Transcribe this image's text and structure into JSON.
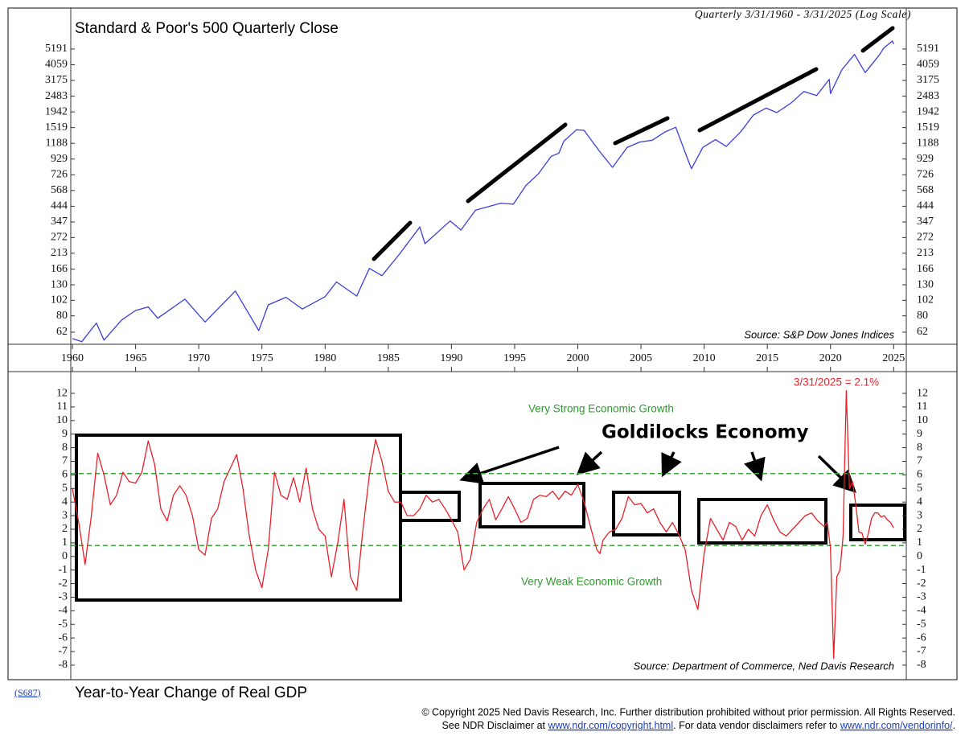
{
  "chart_data": [
    {
      "type": "line",
      "title": "Standard & Poor's 500 Quarterly Close",
      "subtitle": "Quarterly 3/31/1960 - 3/31/2025 (Log Scale)",
      "source": "Source: S&P Dow Jones Indices",
      "log_scale": true,
      "color": "#3b3fd8",
      "x": [
        1960.0,
        1960.75,
        1961.9,
        1962.5,
        1963.9,
        1965.0,
        1966.0,
        1966.75,
        1968.9,
        1970.5,
        1972.9,
        1974.75,
        1975.5,
        1976.9,
        1978.2,
        1980.0,
        1980.9,
        1982.5,
        1983.5,
        1984.5,
        1985.9,
        1987.5,
        1987.9,
        1989.9,
        1990.75,
        1991.9,
        1993.9,
        1994.9,
        1995.9,
        1996.9,
        1997.9,
        1998.5,
        1998.9,
        1999.9,
        2000.5,
        2001.75,
        2002.75,
        2003.9,
        2004.9,
        2005.9,
        2006.9,
        2007.75,
        2008.75,
        2009.0,
        2009.9,
        2010.9,
        2011.75,
        2012.9,
        2013.9,
        2014.9,
        2015.75,
        2016.9,
        2017.9,
        2018.9,
        2019.9,
        2020.0,
        2020.9,
        2021.9,
        2022.75,
        2023.9,
        2024.2,
        2024.9,
        2025.0
      ],
      "values": [
        56,
        53.5,
        71.5,
        54.8,
        75,
        87,
        92,
        77,
        103.9,
        72.7,
        118,
        63.5,
        95,
        107,
        89,
        108,
        136,
        109,
        168,
        150,
        211,
        321,
        247,
        353,
        306,
        417,
        466,
        459,
        615,
        740,
        970,
        1017,
        1229,
        1469,
        1455,
        1040,
        815,
        1112,
        1212,
        1248,
        1418,
        1527,
        903,
        798,
        1115,
        1258,
        1131,
        1426,
        1848,
        2059,
        1920,
        2239,
        2674,
        2507,
        3231,
        2585,
        3756,
        4766,
        3586,
        4770,
        5254,
        5882,
        5612
      ],
      "xlim": [
        1959.87,
        2026.0
      ],
      "xticks": [
        1960,
        1965,
        1970,
        1975,
        1980,
        1985,
        1990,
        1995,
        2000,
        2005,
        2010,
        2015,
        2020,
        2025
      ],
      "ylim": [
        51.3,
        9850
      ],
      "yticks": [
        62,
        80,
        102,
        130,
        166,
        213,
        272,
        347,
        444,
        568,
        726,
        929,
        1188,
        1519,
        1942,
        2483,
        3175,
        4059,
        5191
      ]
    },
    {
      "type": "line",
      "title": "Year-to-Year Change of Real GDP",
      "source": "Source: Department of Commerce, Ned Davis Research",
      "latest_label": "3/31/2025 = 2.1%",
      "upper_label": "Very Strong Economic Growth",
      "lower_label": "Very Weak Economic Growth",
      "callout": "Goldilocks Economy",
      "color": "#e8202a",
      "reference_lines": [
        {
          "value": 6.1,
          "color": "#3aa53a"
        },
        {
          "value": 0.8,
          "color": "#3aa53a"
        }
      ],
      "x": [
        1960.0,
        1960.5,
        1961.0,
        1961.5,
        1962.0,
        1962.5,
        1963.0,
        1963.5,
        1964.0,
        1964.5,
        1965.0,
        1965.5,
        1966.0,
        1966.5,
        1967.0,
        1967.5,
        1968.0,
        1968.5,
        1969.0,
        1969.5,
        1970.0,
        1970.5,
        1971.0,
        1971.5,
        1972.0,
        1972.5,
        1973.0,
        1973.5,
        1974.0,
        1974.5,
        1975.0,
        1975.5,
        1976.0,
        1976.5,
        1977.0,
        1977.5,
        1978.0,
        1978.5,
        1979.0,
        1979.5,
        1980.0,
        1980.5,
        1981.0,
        1981.5,
        1982.0,
        1982.5,
        1983.0,
        1983.5,
        1984.0,
        1984.5,
        1985.0,
        1985.5,
        1986.0,
        1986.5,
        1987.0,
        1987.5,
        1988.0,
        1988.5,
        1989.0,
        1989.5,
        1990.0,
        1990.5,
        1991.0,
        1991.5,
        1992.0,
        1992.5,
        1993.0,
        1993.5,
        1994.0,
        1994.5,
        1995.0,
        1995.5,
        1996.0,
        1996.5,
        1997.0,
        1997.5,
        1998.0,
        1998.5,
        1999.0,
        1999.5,
        2000.0,
        2000.5,
        2001.0,
        2001.5,
        2001.75,
        2002.0,
        2002.5,
        2003.0,
        2003.5,
        2004.0,
        2004.5,
        2005.0,
        2005.5,
        2006.0,
        2006.5,
        2007.0,
        2007.5,
        2008.0,
        2008.5,
        2009.0,
        2009.5,
        2010.0,
        2010.5,
        2011.0,
        2011.5,
        2012.0,
        2012.5,
        2013.0,
        2013.5,
        2014.0,
        2014.5,
        2015.0,
        2015.5,
        2016.0,
        2016.5,
        2017.0,
        2017.5,
        2018.0,
        2018.5,
        2019.0,
        2019.5,
        2019.75,
        2020.0,
        2020.25,
        2020.5,
        2020.75,
        2021.0,
        2021.25,
        2021.5,
        2021.75,
        2022.0,
        2022.25,
        2022.5,
        2022.75,
        2023.0,
        2023.25,
        2023.5,
        2023.75,
        2024.0,
        2024.25,
        2024.5,
        2024.75,
        2025.0
      ],
      "values": [
        5.0,
        2.5,
        -0.6,
        3.0,
        7.6,
        6.0,
        3.8,
        4.5,
        6.2,
        5.5,
        5.4,
        6.2,
        8.5,
        6.8,
        3.5,
        2.6,
        4.5,
        5.2,
        4.5,
        3.0,
        0.5,
        0.1,
        2.8,
        3.5,
        5.5,
        6.5,
        7.5,
        5.0,
        1.5,
        -1.0,
        -2.3,
        0.5,
        6.2,
        4.5,
        4.2,
        5.8,
        4.0,
        6.5,
        3.5,
        2.0,
        1.5,
        -1.5,
        1.0,
        4.2,
        -1.5,
        -2.5,
        2.0,
        6.0,
        8.6,
        7.0,
        4.8,
        4.0,
        4.0,
        3.0,
        3.0,
        3.5,
        4.5,
        4.0,
        4.2,
        3.5,
        2.7,
        1.8,
        -1.0,
        -0.2,
        2.5,
        3.5,
        4.2,
        2.7,
        3.5,
        4.4,
        3.5,
        2.5,
        2.8,
        4.2,
        4.5,
        4.4,
        4.8,
        4.2,
        4.8,
        4.5,
        5.3,
        4.0,
        2.2,
        0.5,
        0.2,
        1.2,
        1.8,
        2.0,
        2.8,
        4.4,
        3.8,
        3.9,
        3.2,
        3.5,
        2.5,
        1.8,
        2.5,
        1.6,
        0.5,
        -2.5,
        -3.9,
        0.2,
        2.8,
        2.0,
        1.2,
        2.5,
        2.2,
        1.2,
        2.0,
        1.5,
        3.0,
        3.8,
        2.7,
        1.8,
        1.5,
        2.0,
        2.5,
        3.0,
        3.2,
        2.6,
        2.2,
        2.5,
        0.6,
        -7.5,
        -1.5,
        -1.0,
        1.5,
        12.2,
        5.0,
        5.5,
        3.8,
        1.8,
        1.7,
        0.9,
        1.7,
        2.8,
        3.2,
        3.2,
        2.9,
        3.0,
        2.7,
        2.5,
        2.1
      ],
      "xlim": [
        1959.87,
        2026.0
      ],
      "ylim": [
        -9.07,
        13.6
      ],
      "yticks": [
        -8,
        -7,
        -6,
        -5,
        -4,
        -3,
        -2,
        -1,
        0,
        1,
        2,
        3,
        4,
        5,
        6,
        7,
        8,
        9,
        10,
        11,
        12
      ]
    }
  ],
  "footer": {
    "code": "(S687)",
    "copyright": "© Copyright 2025 Ned Davis Research, Inc.  Further distribution prohibited without prior permission.  All Rights Reserved.",
    "disclaimer": [
      "See NDR Disclaimer at ",
      "www.ndr.com/copyright.html",
      ". For data vendor disclaimers refer to ",
      "www.ndr.com/vendorinfo/",
      "."
    ]
  }
}
